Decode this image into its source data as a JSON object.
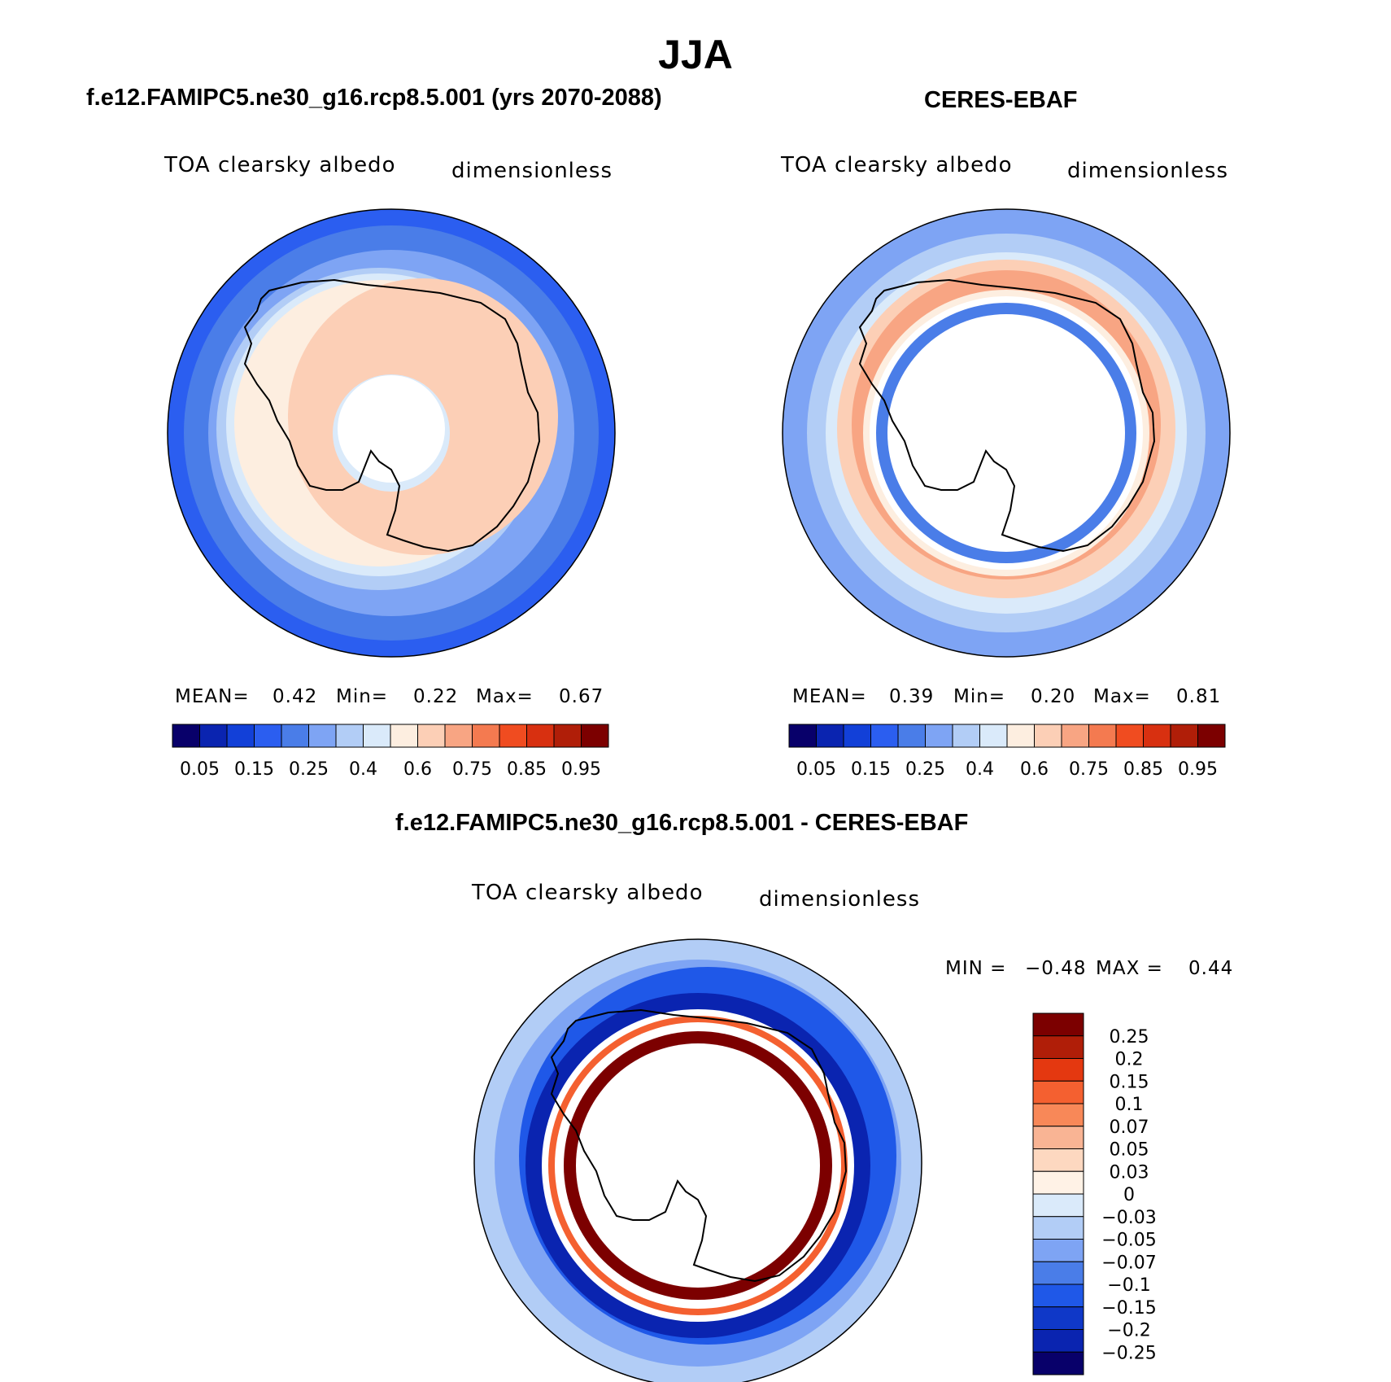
{
  "title": "JJA",
  "panels": [
    {
      "title": "f.e12.FAMIPC5.ne30_g16.rcp8.5.001 (yrs 2070-2088)",
      "variable": "TOA clearsky albedo",
      "units": "dimensionless",
      "stats": {
        "mean_label": "MEAN=",
        "mean": "0.42",
        "min_label": "Min=",
        "min": "0.22",
        "max_label": "Max=",
        "max": "0.67"
      }
    },
    {
      "title": "CERES-EBAF",
      "variable": "TOA clearsky albedo",
      "units": "dimensionless",
      "stats": {
        "mean_label": "MEAN=",
        "mean": "0.39",
        "min_label": "Min=",
        "min": "0.20",
        "max_label": "Max=",
        "max": "0.81"
      }
    },
    {
      "title": "f.e12.FAMIPC5.ne30_g16.rcp8.5.001 - CERES-EBAF",
      "variable": "TOA clearsky albedo",
      "units": "dimensionless",
      "stats": {
        "min_label": "MIN =",
        "min": "−0.48",
        "max_label": "MAX =",
        "max": "0.44"
      }
    }
  ],
  "colorbar_abs": {
    "colors": [
      "#08006a",
      "#0a24b0",
      "#1240d8",
      "#2b5ef0",
      "#4a7de8",
      "#7ea4f4",
      "#b2cdf6",
      "#daeafa",
      "#fdeee0",
      "#fccfb6",
      "#f8a583",
      "#f47a50",
      "#f04c20",
      "#d83010",
      "#b01e08",
      "#7c0000"
    ],
    "tick_labels": [
      "0.05",
      "0.15",
      "0.25",
      "0.4",
      "0.6",
      "0.75",
      "0.85",
      "0.95"
    ],
    "tick_boundaries": [
      1,
      3,
      5,
      7,
      9,
      11,
      13,
      15
    ]
  },
  "colorbar_diff": {
    "colors": [
      "#7c0000",
      "#b01e08",
      "#e43810",
      "#f46030",
      "#f88858",
      "#f9b494",
      "#fdd8c0",
      "#fff2e6",
      "#daeafa",
      "#b2cdf6",
      "#7ea4f4",
      "#4a7de8",
      "#1f58e8",
      "#0f38c8",
      "#0a24b0",
      "#08006a"
    ],
    "tick_labels": [
      "0.25",
      "0.2",
      "0.15",
      "0.1",
      "0.07",
      "0.05",
      "0.03",
      "0",
      "−0.03",
      "−0.05",
      "−0.07",
      "−0.1",
      "−0.15",
      "−0.2",
      "−0.25"
    ]
  },
  "chart_data": [
    {
      "type": "heatmap",
      "title": "f.e12.FAMIPC5.ne30_g16.rcp8.5.001 (yrs 2070-2088)",
      "variable": "TOA clearsky albedo",
      "units": "dimensionless",
      "projection": "south polar stereographic",
      "mean": 0.42,
      "min": 0.22,
      "max": 0.67,
      "levels": [
        0.05,
        0.1,
        0.15,
        0.2,
        0.25,
        0.3,
        0.4,
        0.5,
        0.6,
        0.65,
        0.75,
        0.8,
        0.85,
        0.9,
        0.95
      ]
    },
    {
      "type": "heatmap",
      "title": "CERES-EBAF",
      "variable": "TOA clearsky albedo",
      "units": "dimensionless",
      "projection": "south polar stereographic",
      "mean": 0.39,
      "min": 0.2,
      "max": 0.81,
      "levels": [
        0.05,
        0.1,
        0.15,
        0.2,
        0.25,
        0.3,
        0.4,
        0.5,
        0.6,
        0.65,
        0.75,
        0.8,
        0.85,
        0.9,
        0.95
      ]
    },
    {
      "type": "heatmap",
      "title": "f.e12.FAMIPC5.ne30_g16.rcp8.5.001 - CERES-EBAF",
      "variable": "TOA clearsky albedo",
      "units": "dimensionless",
      "projection": "south polar stereographic",
      "min": -0.48,
      "max": 0.44,
      "levels": [
        -0.25,
        -0.2,
        -0.15,
        -0.1,
        -0.07,
        -0.05,
        -0.03,
        0,
        0.03,
        0.05,
        0.07,
        0.1,
        0.15,
        0.2,
        0.25
      ]
    }
  ]
}
